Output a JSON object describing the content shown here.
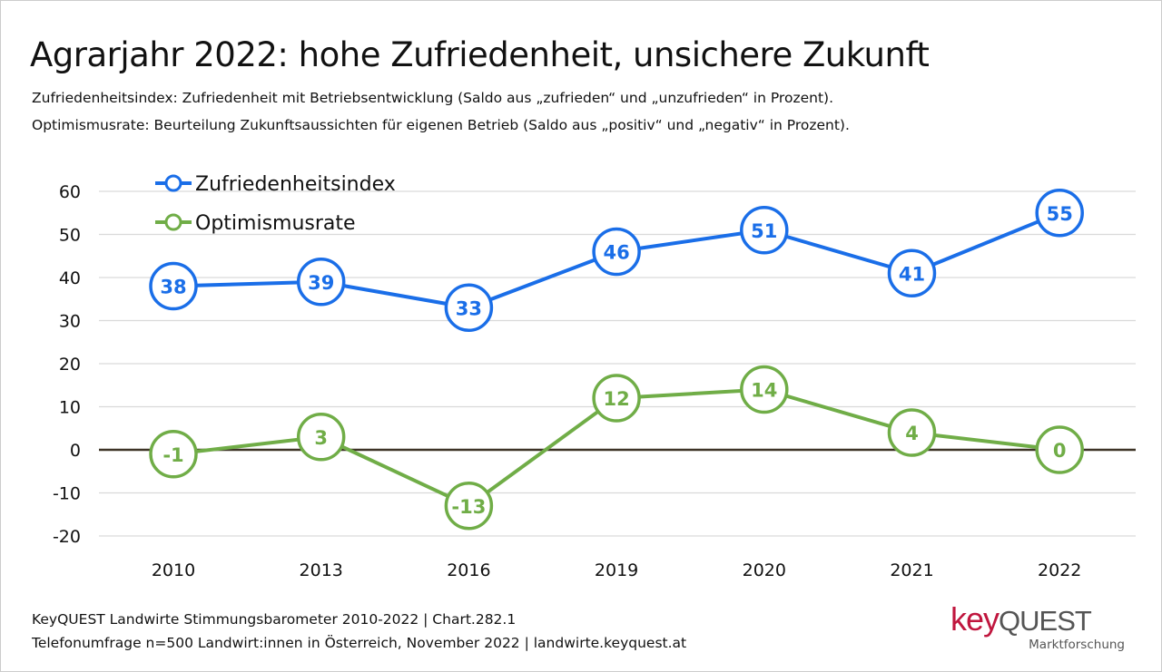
{
  "title": "Agrarjahr 2022: hohe Zufriedenheit, unsichere Zukunft",
  "subtitles": [
    "Zufriedenheitsindex: Zufriedenheit mit Betriebsentwicklung (Saldo aus „zufrieden“ und „unzufrieden“ in Prozent).",
    "Optimismusrate: Beurteilung Zukunftsaussichten für eigenen Betrieb (Saldo aus „positiv“ und „negativ“ in Prozent)."
  ],
  "footer": [
    "KeyQUEST Landwirte Stimmungsbarometer 2010-2022  | Chart.282.1",
    "Telefonumfrage n=500 Landwirt:innen in Österreich, November 2022 | landwirte.keyquest.at"
  ],
  "logo": {
    "key": "key",
    "quest": "QUEST",
    "sub": "Marktforschung",
    "key_color": "#c0163e",
    "quest_color": "#555555"
  },
  "chart_data": {
    "type": "line",
    "categories": [
      "2010",
      "2013",
      "2016",
      "2019",
      "2020",
      "2021",
      "2022"
    ],
    "ylim": [
      -20,
      60
    ],
    "yticks": [
      "60",
      "50",
      "40",
      "30",
      "20",
      "10",
      "0",
      "-10",
      "-20"
    ],
    "grid": true,
    "legend": "top-left",
    "series": [
      {
        "name": "Zufriedenheitsindex",
        "color": "#1a6ee8",
        "values": [
          38,
          39,
          33,
          46,
          51,
          41,
          55
        ]
      },
      {
        "name": "Optimismusrate",
        "color": "#70ad47",
        "values": [
          -1,
          3,
          -13,
          12,
          14,
          4,
          0
        ]
      }
    ]
  }
}
